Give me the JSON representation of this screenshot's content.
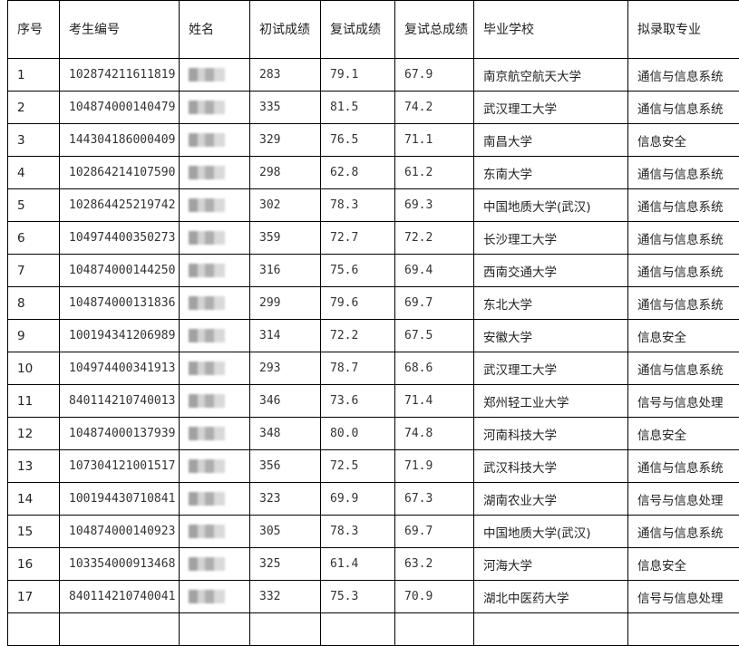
{
  "headers": [
    "序号",
    "考生编号",
    "姓名",
    "初试成绩",
    "复试成绩",
    "复试总成绩",
    "毕业学校",
    "拟录取专业"
  ],
  "rows": [
    {
      "no": "1",
      "id": "102874211611819",
      "initial": "283",
      "retest": "79.1",
      "total": "67.9",
      "school": "南京航空航天大学",
      "major": "通信与信息系统"
    },
    {
      "no": "2",
      "id": "104874000140479",
      "initial": "335",
      "retest": "81.5",
      "total": "74.2",
      "school": "武汉理工大学",
      "major": "通信与信息系统"
    },
    {
      "no": "3",
      "id": "144304186000409",
      "initial": "329",
      "retest": "76.5",
      "total": "71.1",
      "school": "南昌大学",
      "major": "信息安全"
    },
    {
      "no": "4",
      "id": "102864214107590",
      "initial": "298",
      "retest": "62.8",
      "total": "61.2",
      "school": "东南大学",
      "major": "通信与信息系统"
    },
    {
      "no": "5",
      "id": "102864425219742",
      "initial": "302",
      "retest": "78.3",
      "total": "69.3",
      "school": "中国地质大学(武汉)",
      "major": "通信与信息系统"
    },
    {
      "no": "6",
      "id": "104974400350273",
      "initial": "359",
      "retest": "72.7",
      "total": "72.2",
      "school": "长沙理工大学",
      "major": "通信与信息系统"
    },
    {
      "no": "7",
      "id": "104874000144250",
      "initial": "316",
      "retest": "75.6",
      "total": "69.4",
      "school": "西南交通大学",
      "major": "通信与信息系统"
    },
    {
      "no": "8",
      "id": "104874000131836",
      "initial": "299",
      "retest": "79.6",
      "total": "69.7",
      "school": "东北大学",
      "major": "通信与信息系统"
    },
    {
      "no": "9",
      "id": "100194341206989",
      "initial": "314",
      "retest": "72.2",
      "total": "67.5",
      "school": "安徽大学",
      "major": "信息安全"
    },
    {
      "no": "10",
      "id": "104974400341913",
      "initial": "293",
      "retest": "78.7",
      "total": "68.6",
      "school": "武汉理工大学",
      "major": "通信与信息系统"
    },
    {
      "no": "11",
      "id": "840114210740013",
      "initial": "346",
      "retest": "73.6",
      "total": "71.4",
      "school": "郑州轻工业大学",
      "major": "信号与信息处理"
    },
    {
      "no": "12",
      "id": "104874000137939",
      "initial": "348",
      "retest": "80.0",
      "total": "74.8",
      "school": "河南科技大学",
      "major": "信息安全"
    },
    {
      "no": "13",
      "id": "107304121001517",
      "initial": "356",
      "retest": "72.5",
      "total": "71.9",
      "school": "武汉科技大学",
      "major": "通信与信息系统"
    },
    {
      "no": "14",
      "id": "100194430710841",
      "initial": "323",
      "retest": "69.9",
      "total": "67.3",
      "school": "湖南农业大学",
      "major": "信号与信息处理"
    },
    {
      "no": "15",
      "id": "104874000140923",
      "initial": "305",
      "retest": "78.3",
      "total": "69.7",
      "school": "中国地质大学(武汉)",
      "major": "通信与信息系统"
    },
    {
      "no": "16",
      "id": "103354000913468",
      "initial": "325",
      "retest": "61.4",
      "total": "63.2",
      "school": "河海大学",
      "major": "信息安全"
    },
    {
      "no": "17",
      "id": "840114210740041",
      "initial": "332",
      "retest": "75.3",
      "total": "70.9",
      "school": "湖北中医药大学",
      "major": "信号与信息处理"
    }
  ]
}
